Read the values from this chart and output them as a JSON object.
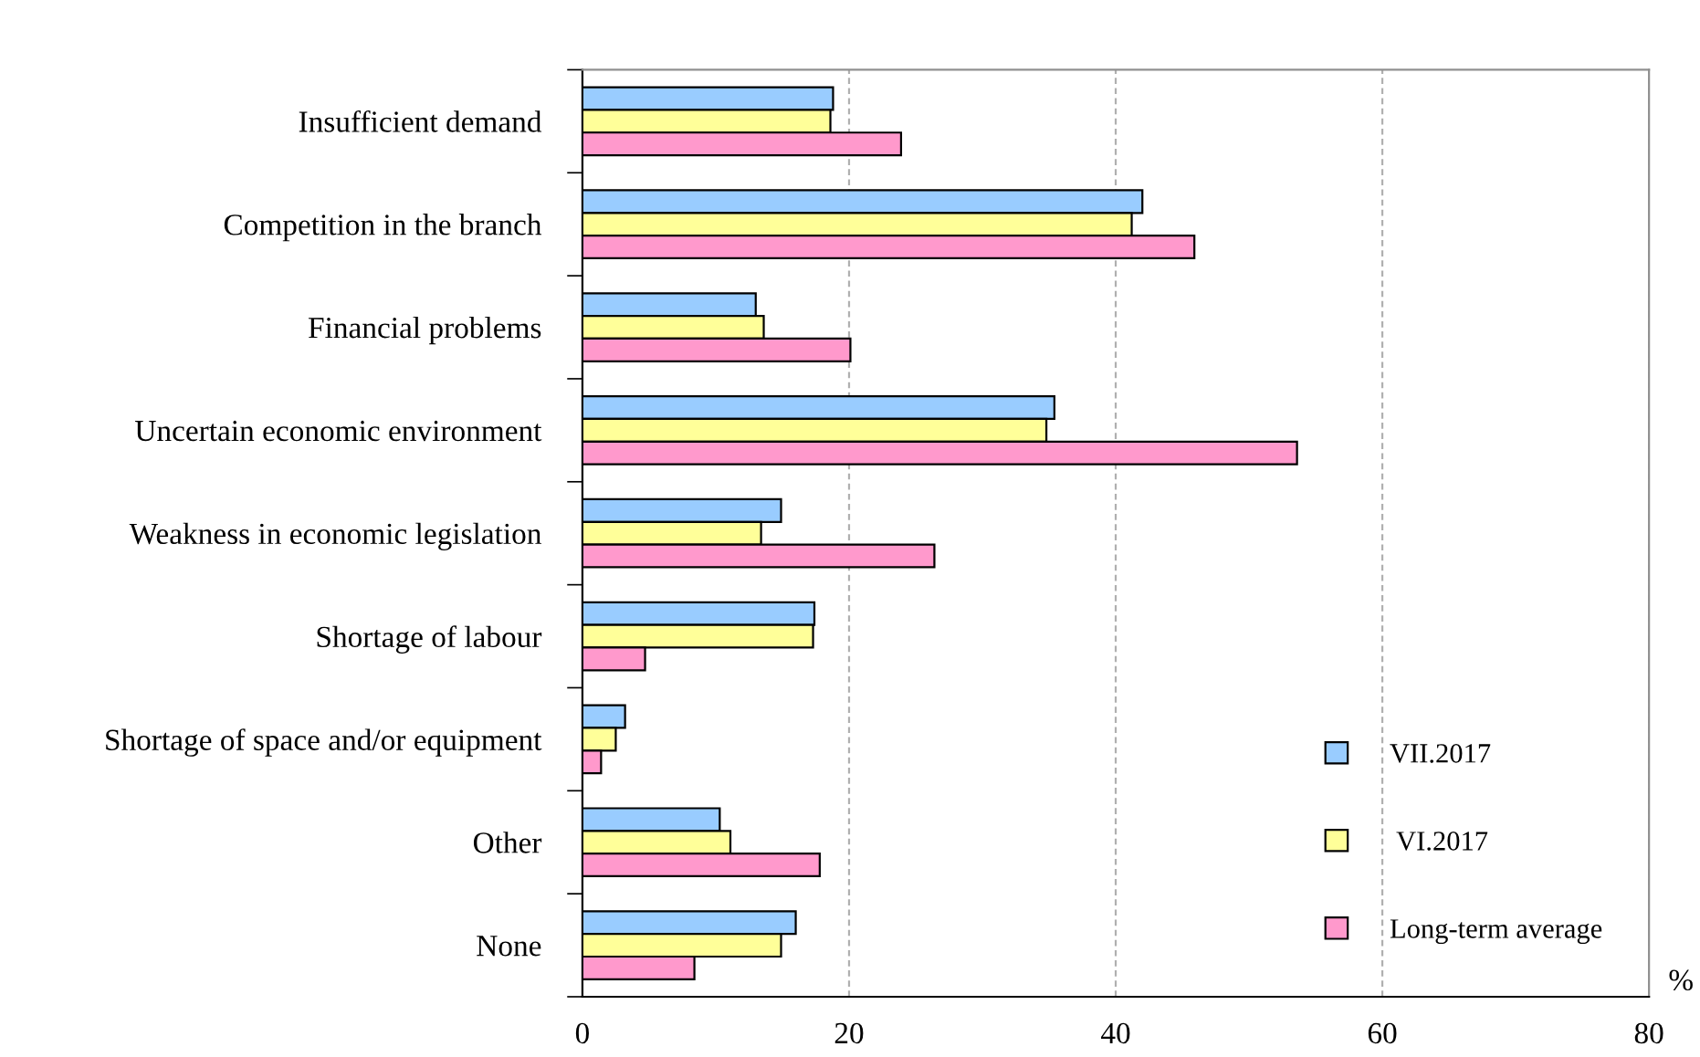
{
  "chart_data": {
    "type": "bar",
    "orientation": "horizontal",
    "categories": [
      "Insufficient demand",
      "Competition in the branch",
      "Financial problems",
      "Uncertain economic environment",
      "Weakness in economic legislation",
      "Shortage of labour",
      "Shortage of space and/or equipment",
      "Other",
      "None"
    ],
    "series": [
      {
        "name": "VII.2017",
        "color": "#99ccff",
        "values": [
          18.8,
          42.0,
          13.0,
          35.4,
          14.9,
          17.4,
          3.2,
          10.3,
          16.0
        ]
      },
      {
        "name": " VI.2017",
        "color": "#ffff99",
        "values": [
          18.6,
          41.2,
          13.6,
          34.8,
          13.4,
          17.3,
          2.5,
          11.1,
          14.9
        ]
      },
      {
        "name": "Long-term average",
        "color": "#ff99cc",
        "values": [
          23.9,
          45.9,
          20.1,
          53.6,
          26.4,
          4.7,
          1.4,
          17.8,
          8.4
        ]
      }
    ],
    "xlim": [
      0,
      80
    ],
    "xticks": [
      0,
      20,
      40,
      60,
      80
    ],
    "xlabel": "%",
    "grid": "x",
    "legend": "bottom right"
  }
}
